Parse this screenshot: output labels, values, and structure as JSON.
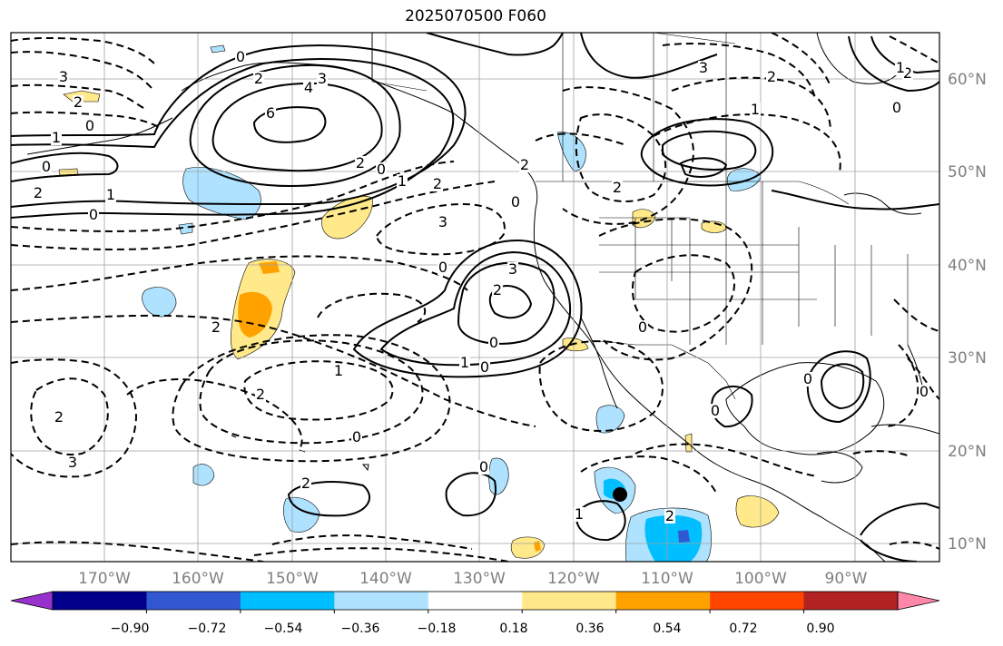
{
  "title": "2025070500 F060",
  "map": {
    "projection": "PlateCarree",
    "extent_lon": [
      -180,
      -81
    ],
    "extent_lat": [
      8,
      66
    ],
    "gridlines": true,
    "lon_ticks": [
      "170°W",
      "160°W",
      "150°W",
      "140°W",
      "130°W",
      "120°W",
      "110°W",
      "100°W",
      "90°W"
    ],
    "lat_ticks": [
      "60°N",
      "50°N",
      "40°N",
      "30°N",
      "20°N",
      "10°N"
    ],
    "colors": {
      "land_outline": "#000000",
      "grid": "#a0a0a0",
      "tick_text": "#7f7f7f"
    }
  },
  "contour_labels": [
    "0",
    "2",
    "3",
    "4",
    "6",
    "2",
    "0",
    "1",
    "2",
    "3",
    "0",
    "3",
    "2",
    "0",
    "1",
    "0",
    "2",
    "2",
    "1",
    "0",
    "2",
    "3",
    "2",
    "0",
    "1",
    "2",
    "0",
    "0",
    "0",
    "0",
    "0",
    "2",
    "2",
    "0",
    "1",
    "2",
    "0",
    "0",
    "1",
    "2",
    "3",
    "3",
    "2",
    "1",
    "0",
    "2",
    "1"
  ],
  "filled_features": {
    "positive_yellow": "#ffe98a",
    "positive_orange": "#ffa200",
    "negative_lightblue": "#aee2ff",
    "negative_cyan": "#00bfff",
    "negative_blue": "#3158d0"
  },
  "marker": {
    "label": "storm-center",
    "color": "#000000"
  },
  "colorbar": {
    "colors": [
      "#9932cc",
      "#00008b",
      "#3158d0",
      "#00bfff",
      "#aee2ff",
      "#ffffff",
      "#ffe98a",
      "#ffa200",
      "#ff4500",
      "#b22222",
      "#ff88aa"
    ],
    "ticks": [
      "−0.90",
      "−0.72",
      "−0.54",
      "−0.36",
      "−0.18",
      "0.18",
      "0.36",
      "0.54",
      "0.72",
      "0.90"
    ],
    "extend": "both"
  }
}
